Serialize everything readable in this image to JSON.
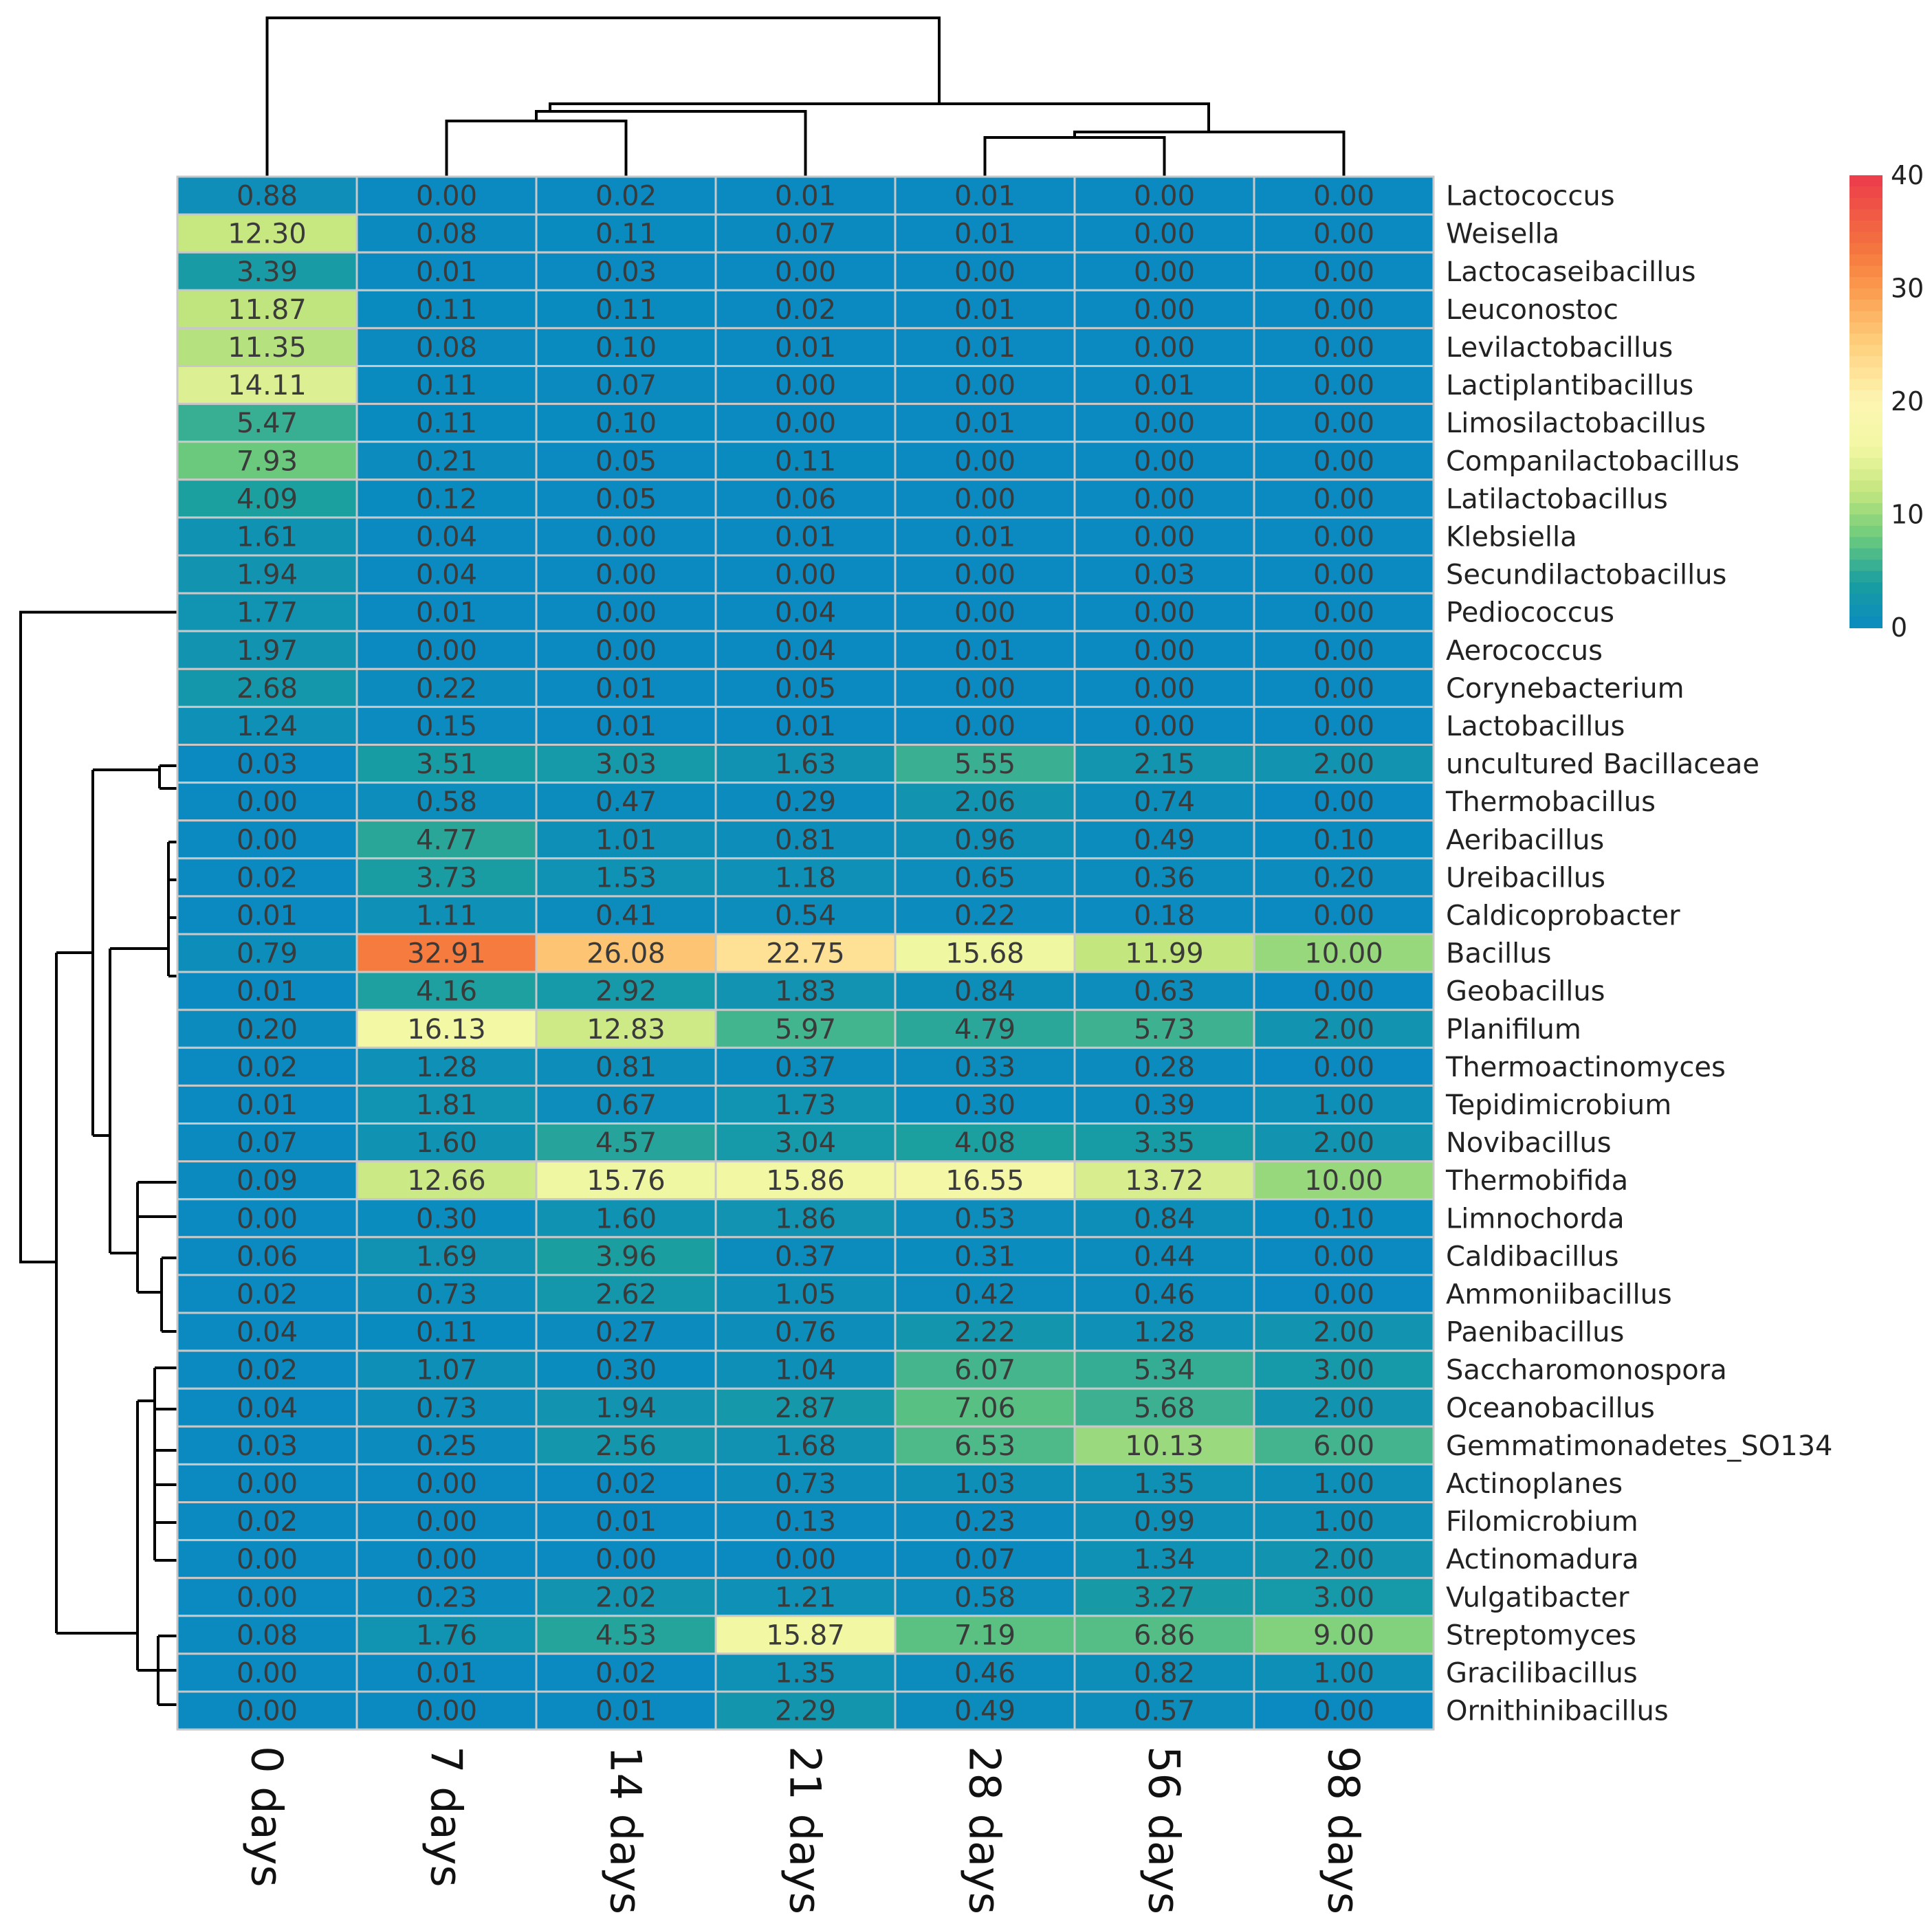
{
  "chart_data": {
    "type": "heatmap",
    "title": "",
    "columns": [
      "0 days",
      "7 days",
      "14 days",
      "21 days",
      "28 days",
      "56 days",
      "98 days"
    ],
    "rows": [
      "Lactococcus",
      "Weisella",
      "Lactocaseibacillus",
      "Leuconostoc",
      "Levilactobacillus",
      "Lactiplantibacillus",
      "Limosilactobacillus",
      "Companilactobacillus",
      "Latilactobacillus",
      "Klebsiella",
      "Secundilactobacillus",
      "Pediococcus",
      "Aerococcus",
      "Corynebacterium",
      "Lactobacillus",
      "uncultured Bacillaceae",
      "Thermobacillus",
      "Aeribacillus",
      "Ureibacillus",
      "Caldicoprobacter",
      "Bacillus",
      "Geobacillus",
      "Planifilum",
      "Thermoactinomyces",
      "Tepidimicrobium",
      "Novibacillus",
      "Thermobifida",
      "Limnochorda",
      "Caldibacillus",
      "Ammoniibacillus",
      "Paenibacillus",
      "Saccharomonospora",
      "Oceanobacillus",
      "Gemmatimonadetes_SO134",
      "Actinoplanes",
      "Filomicrobium",
      "Actinomadura",
      "Vulgatibacter",
      "Streptomyces",
      "Gracilibacillus",
      "Ornithinibacillus"
    ],
    "values": [
      [
        "0.88",
        "0.00",
        "0.02",
        "0.01",
        "0.01",
        "0.00",
        "0.00"
      ],
      [
        "12.30",
        "0.08",
        "0.11",
        "0.07",
        "0.01",
        "0.00",
        "0.00"
      ],
      [
        "3.39",
        "0.01",
        "0.03",
        "0.00",
        "0.00",
        "0.00",
        "0.00"
      ],
      [
        "11.87",
        "0.11",
        "0.11",
        "0.02",
        "0.01",
        "0.00",
        "0.00"
      ],
      [
        "11.35",
        "0.08",
        "0.10",
        "0.01",
        "0.01",
        "0.00",
        "0.00"
      ],
      [
        "14.11",
        "0.11",
        "0.07",
        "0.00",
        "0.00",
        "0.01",
        "0.00"
      ],
      [
        "5.47",
        "0.11",
        "0.10",
        "0.00",
        "0.01",
        "0.00",
        "0.00"
      ],
      [
        "7.93",
        "0.21",
        "0.05",
        "0.11",
        "0.00",
        "0.00",
        "0.00"
      ],
      [
        "4.09",
        "0.12",
        "0.05",
        "0.06",
        "0.00",
        "0.00",
        "0.00"
      ],
      [
        "1.61",
        "0.04",
        "0.00",
        "0.01",
        "0.01",
        "0.00",
        "0.00"
      ],
      [
        "1.94",
        "0.04",
        "0.00",
        "0.00",
        "0.00",
        "0.03",
        "0.00"
      ],
      [
        "1.77",
        "0.01",
        "0.00",
        "0.04",
        "0.00",
        "0.00",
        "0.00"
      ],
      [
        "1.97",
        "0.00",
        "0.00",
        "0.04",
        "0.01",
        "0.00",
        "0.00"
      ],
      [
        "2.68",
        "0.22",
        "0.01",
        "0.05",
        "0.00",
        "0.00",
        "0.00"
      ],
      [
        "1.24",
        "0.15",
        "0.01",
        "0.01",
        "0.00",
        "0.00",
        "0.00"
      ],
      [
        "0.03",
        "3.51",
        "3.03",
        "1.63",
        "5.55",
        "2.15",
        "2.00"
      ],
      [
        "0.00",
        "0.58",
        "0.47",
        "0.29",
        "2.06",
        "0.74",
        "0.00"
      ],
      [
        "0.00",
        "4.77",
        "1.01",
        "0.81",
        "0.96",
        "0.49",
        "0.10"
      ],
      [
        "0.02",
        "3.73",
        "1.53",
        "1.18",
        "0.65",
        "0.36",
        "0.20"
      ],
      [
        "0.01",
        "1.11",
        "0.41",
        "0.54",
        "0.22",
        "0.18",
        "0.00"
      ],
      [
        "0.79",
        "32.91",
        "26.08",
        "22.75",
        "15.68",
        "11.99",
        "10.00"
      ],
      [
        "0.01",
        "4.16",
        "2.92",
        "1.83",
        "0.84",
        "0.63",
        "0.00"
      ],
      [
        "0.20",
        "16.13",
        "12.83",
        "5.97",
        "4.79",
        "5.73",
        "2.00"
      ],
      [
        "0.02",
        "1.28",
        "0.81",
        "0.37",
        "0.33",
        "0.28",
        "0.00"
      ],
      [
        "0.01",
        "1.81",
        "0.67",
        "1.73",
        "0.30",
        "0.39",
        "1.00"
      ],
      [
        "0.07",
        "1.60",
        "4.57",
        "3.04",
        "4.08",
        "3.35",
        "2.00"
      ],
      [
        "0.09",
        "12.66",
        "15.76",
        "15.86",
        "16.55",
        "13.72",
        "10.00"
      ],
      [
        "0.00",
        "0.30",
        "1.60",
        "1.86",
        "0.53",
        "0.84",
        "0.10"
      ],
      [
        "0.06",
        "1.69",
        "3.96",
        "0.37",
        "0.31",
        "0.44",
        "0.00"
      ],
      [
        "0.02",
        "0.73",
        "2.62",
        "1.05",
        "0.42",
        "0.46",
        "0.00"
      ],
      [
        "0.04",
        "0.11",
        "0.27",
        "0.76",
        "2.22",
        "1.28",
        "2.00"
      ],
      [
        "0.02",
        "1.07",
        "0.30",
        "1.04",
        "6.07",
        "5.34",
        "3.00"
      ],
      [
        "0.04",
        "0.73",
        "1.94",
        "2.87",
        "7.06",
        "5.68",
        "2.00"
      ],
      [
        "0.03",
        "0.25",
        "2.56",
        "1.68",
        "6.53",
        "10.13",
        "6.00"
      ],
      [
        "0.00",
        "0.00",
        "0.02",
        "0.73",
        "1.03",
        "1.35",
        "1.00"
      ],
      [
        "0.02",
        "0.00",
        "0.01",
        "0.13",
        "0.23",
        "0.99",
        "1.00"
      ],
      [
        "0.00",
        "0.00",
        "0.00",
        "0.00",
        "0.07",
        "1.34",
        "2.00"
      ],
      [
        "0.00",
        "0.23",
        "2.02",
        "1.21",
        "0.58",
        "3.27",
        "3.00"
      ],
      [
        "0.08",
        "1.76",
        "4.53",
        "15.87",
        "7.19",
        "6.86",
        "9.00"
      ],
      [
        "0.00",
        "0.01",
        "0.02",
        "1.35",
        "0.46",
        "0.82",
        "1.00"
      ],
      [
        "0.00",
        "0.00",
        "0.01",
        "2.29",
        "0.49",
        "0.57",
        "0.00"
      ]
    ],
    "color_scale": {
      "range": [
        0,
        40
      ],
      "ticks": [
        "0",
        "10",
        "20",
        "30",
        "40"
      ],
      "stops": [
        {
          "value": 0,
          "color": "#0a8ac0"
        },
        {
          "value": 4,
          "color": "#1a9ea0"
        },
        {
          "value": 8,
          "color": "#6cca7c"
        },
        {
          "value": 12,
          "color": "#c3e67e"
        },
        {
          "value": 16,
          "color": "#f3f8a4"
        },
        {
          "value": 20,
          "color": "#fdf6b2"
        },
        {
          "value": 25,
          "color": "#fed07e"
        },
        {
          "value": 30,
          "color": "#fb9a4d"
        },
        {
          "value": 33,
          "color": "#f57a3e"
        },
        {
          "value": 40,
          "color": "#ec3a4c"
        }
      ]
    },
    "legend_position": "top-right",
    "dendrogram_top": true,
    "dendrogram_left": true
  }
}
